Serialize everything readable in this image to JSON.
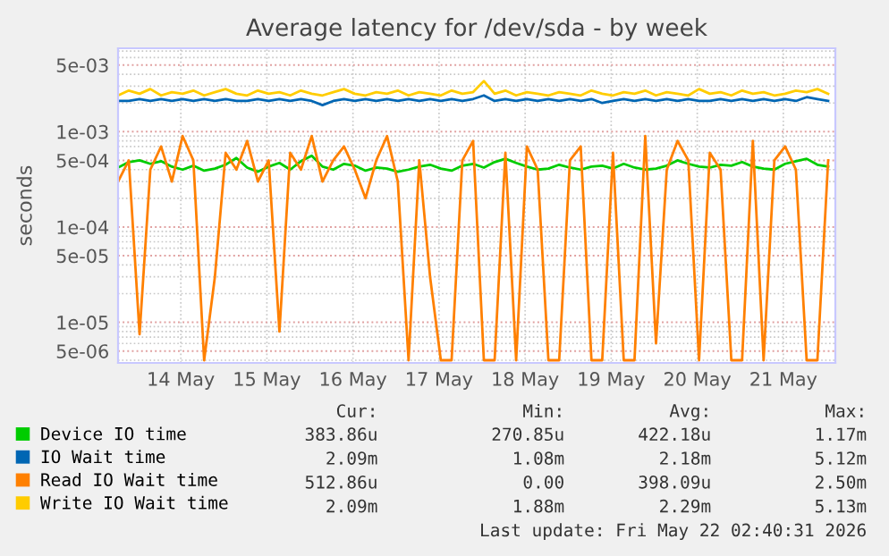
{
  "chart_data": {
    "type": "line",
    "title": "Average latency for /dev/sda - by week",
    "ylabel": "seconds",
    "log": "y",
    "grid": true,
    "legend": "bottom",
    "marker": "none",
    "line_style": "solid",
    "xlim": [
      "2026-05-13T18:30",
      "2026-05-22T02:30"
    ],
    "xticks": [
      {
        "value": "2026-05-14T12:00",
        "label": "14 May"
      },
      {
        "value": "2026-05-15T12:00",
        "label": "15 May"
      },
      {
        "value": "2026-05-16T12:00",
        "label": "16 May"
      },
      {
        "value": "2026-05-17T12:00",
        "label": "17 May"
      },
      {
        "value": "2026-05-18T12:00",
        "label": "18 May"
      },
      {
        "value": "2026-05-19T12:00",
        "label": "19 May"
      },
      {
        "value": "2026-05-20T12:00",
        "label": "20 May"
      },
      {
        "value": "2026-05-21T12:00",
        "label": "21 May"
      }
    ],
    "ylim": [
      3.75e-06,
      0.0075
    ],
    "yticks": [
      {
        "value": 0.005,
        "label": "5e-03"
      },
      {
        "value": 0.001,
        "label": "1e-03"
      },
      {
        "value": 0.0005,
        "label": "5e-04"
      },
      {
        "value": 0.0001,
        "label": "1e-04"
      },
      {
        "value": 5e-05,
        "label": "5e-05"
      },
      {
        "value": 1e-05,
        "label": "1e-05"
      },
      {
        "value": 5e-06,
        "label": "5e-06"
      }
    ],
    "x": [
      "2026-05-13T18:30",
      "2026-05-13T21:30",
      "2026-05-14T00:30",
      "2026-05-14T03:30",
      "2026-05-14T06:30",
      "2026-05-14T09:30",
      "2026-05-14T12:30",
      "2026-05-14T15:30",
      "2026-05-14T18:30",
      "2026-05-14T21:30",
      "2026-05-15T00:30",
      "2026-05-15T03:30",
      "2026-05-15T06:30",
      "2026-05-15T09:30",
      "2026-05-15T12:30",
      "2026-05-15T15:30",
      "2026-05-15T18:30",
      "2026-05-15T21:30",
      "2026-05-16T00:30",
      "2026-05-16T03:30",
      "2026-05-16T06:30",
      "2026-05-16T09:30",
      "2026-05-16T12:30",
      "2026-05-16T15:30",
      "2026-05-16T18:30",
      "2026-05-16T21:30",
      "2026-05-17T00:30",
      "2026-05-17T03:30",
      "2026-05-17T06:30",
      "2026-05-17T09:30",
      "2026-05-17T12:30",
      "2026-05-17T15:30",
      "2026-05-17T18:30",
      "2026-05-17T21:30",
      "2026-05-18T00:30",
      "2026-05-18T03:30",
      "2026-05-18T06:30",
      "2026-05-18T09:30",
      "2026-05-18T12:30",
      "2026-05-18T15:30",
      "2026-05-18T18:30",
      "2026-05-18T21:30",
      "2026-05-19T00:30",
      "2026-05-19T03:30",
      "2026-05-19T06:30",
      "2026-05-19T09:30",
      "2026-05-19T12:30",
      "2026-05-19T15:30",
      "2026-05-19T18:30",
      "2026-05-19T21:30",
      "2026-05-20T00:30",
      "2026-05-20T03:30",
      "2026-05-20T06:30",
      "2026-05-20T09:30",
      "2026-05-20T12:30",
      "2026-05-20T15:30",
      "2026-05-20T18:30",
      "2026-05-20T21:30",
      "2026-05-21T00:30",
      "2026-05-21T03:30",
      "2026-05-21T06:30",
      "2026-05-21T09:30",
      "2026-05-21T12:30",
      "2026-05-21T15:30",
      "2026-05-21T18:30",
      "2026-05-21T21:30",
      "2026-05-22T00:30"
    ],
    "series": [
      {
        "name": "Device IO time",
        "color": "#00cc00",
        "values": [
          0.00042,
          0.00048,
          0.0005,
          0.00046,
          0.00049,
          0.00043,
          0.0004,
          0.00044,
          0.00039,
          0.00041,
          0.00045,
          0.00053,
          0.00042,
          0.00038,
          0.00043,
          0.00047,
          0.0004,
          0.00049,
          0.00056,
          0.00043,
          0.0004,
          0.00046,
          0.00044,
          0.00039,
          0.00042,
          0.00041,
          0.00038,
          0.0004,
          0.00043,
          0.00045,
          0.00041,
          0.00039,
          0.00044,
          0.00046,
          0.00042,
          0.00048,
          0.00052,
          0.00047,
          0.00043,
          0.0004,
          0.00041,
          0.00045,
          0.00042,
          0.0004,
          0.00043,
          0.00044,
          0.00041,
          0.00046,
          0.00042,
          0.0004,
          0.00041,
          0.00044,
          0.0005,
          0.00046,
          0.00043,
          0.00042,
          0.00045,
          0.00044,
          0.00048,
          0.00043,
          0.00041,
          0.0004,
          0.00046,
          0.00049,
          0.00052,
          0.00045,
          0.00043
        ]
      },
      {
        "name": "IO Wait time",
        "color": "#0066b3",
        "values": [
          0.0021,
          0.0021,
          0.0022,
          0.0021,
          0.0022,
          0.0021,
          0.0022,
          0.0021,
          0.0022,
          0.0021,
          0.0022,
          0.0021,
          0.0021,
          0.0022,
          0.0021,
          0.0022,
          0.0021,
          0.0022,
          0.0021,
          0.0019,
          0.0021,
          0.0022,
          0.0021,
          0.0022,
          0.0021,
          0.0022,
          0.0021,
          0.0022,
          0.0021,
          0.0022,
          0.0021,
          0.0022,
          0.0021,
          0.0022,
          0.0024,
          0.0021,
          0.0022,
          0.0021,
          0.0022,
          0.0021,
          0.0022,
          0.0021,
          0.0022,
          0.0021,
          0.0022,
          0.002,
          0.0021,
          0.0022,
          0.0021,
          0.0022,
          0.0021,
          0.0022,
          0.0021,
          0.0022,
          0.0021,
          0.0021,
          0.0022,
          0.0021,
          0.0022,
          0.0021,
          0.0022,
          0.0021,
          0.0022,
          0.0021,
          0.0023,
          0.0022,
          0.0021
        ]
      },
      {
        "name": "Read IO Wait time",
        "color": "#ff8000",
        "values": [
          0.0003,
          0.0005,
          7.5e-06,
          0.0004,
          0.0007,
          0.0003,
          0.0009,
          0.0005,
          4e-06,
          3e-05,
          0.0006,
          0.0004,
          0.0008,
          0.0003,
          0.0005,
          8e-06,
          0.0006,
          0.0004,
          0.0009,
          0.0003,
          0.0005,
          0.0007,
          0.0004,
          0.0002,
          0.0005,
          0.0009,
          0.0003,
          4e-06,
          0.0005,
          3e-05,
          4e-06,
          4e-06,
          0.0005,
          0.0008,
          4e-06,
          4e-06,
          0.0006,
          4e-06,
          0.0007,
          0.0004,
          4e-06,
          4e-06,
          0.0005,
          0.0007,
          4e-06,
          4e-06,
          0.0006,
          4e-06,
          4e-06,
          0.0009,
          6e-06,
          0.0004,
          0.0008,
          0.0005,
          4e-06,
          0.0006,
          0.0004,
          4e-06,
          4e-06,
          0.0008,
          4e-06,
          0.0005,
          0.0007,
          0.0004,
          4e-06,
          4e-06,
          0.0005
        ]
      },
      {
        "name": "Write IO Wait time",
        "color": "#ffcc00",
        "values": [
          0.0024,
          0.0027,
          0.0025,
          0.0028,
          0.0024,
          0.0026,
          0.0025,
          0.0027,
          0.0024,
          0.0026,
          0.0028,
          0.0025,
          0.0024,
          0.0027,
          0.0025,
          0.0026,
          0.0024,
          0.0027,
          0.0025,
          0.0024,
          0.0026,
          0.0028,
          0.0025,
          0.0024,
          0.0026,
          0.0025,
          0.0027,
          0.0024,
          0.0026,
          0.0025,
          0.0024,
          0.0027,
          0.0025,
          0.0026,
          0.0034,
          0.0025,
          0.0027,
          0.0024,
          0.0026,
          0.0025,
          0.0024,
          0.0026,
          0.0025,
          0.0024,
          0.0027,
          0.0025,
          0.0024,
          0.0026,
          0.0025,
          0.0027,
          0.0024,
          0.0026,
          0.0025,
          0.0024,
          0.0028,
          0.0025,
          0.0026,
          0.0024,
          0.0027,
          0.0025,
          0.0026,
          0.0024,
          0.0025,
          0.0027,
          0.0026,
          0.0028,
          0.0025
        ]
      }
    ],
    "annotations": [
      "Cur:",
      "Min:",
      "Avg:",
      "Max:",
      "383.86u",
      "270.85u",
      "422.18u",
      "1.17m",
      "2.09m",
      "1.08m",
      "2.18m",
      "5.12m",
      "512.86u",
      "0.00",
      "398.09u",
      "2.50m",
      "2.09m",
      "1.88m",
      "2.29m",
      "5.13m",
      "Last update: Fri May 22 02:40:31 2026"
    ]
  }
}
